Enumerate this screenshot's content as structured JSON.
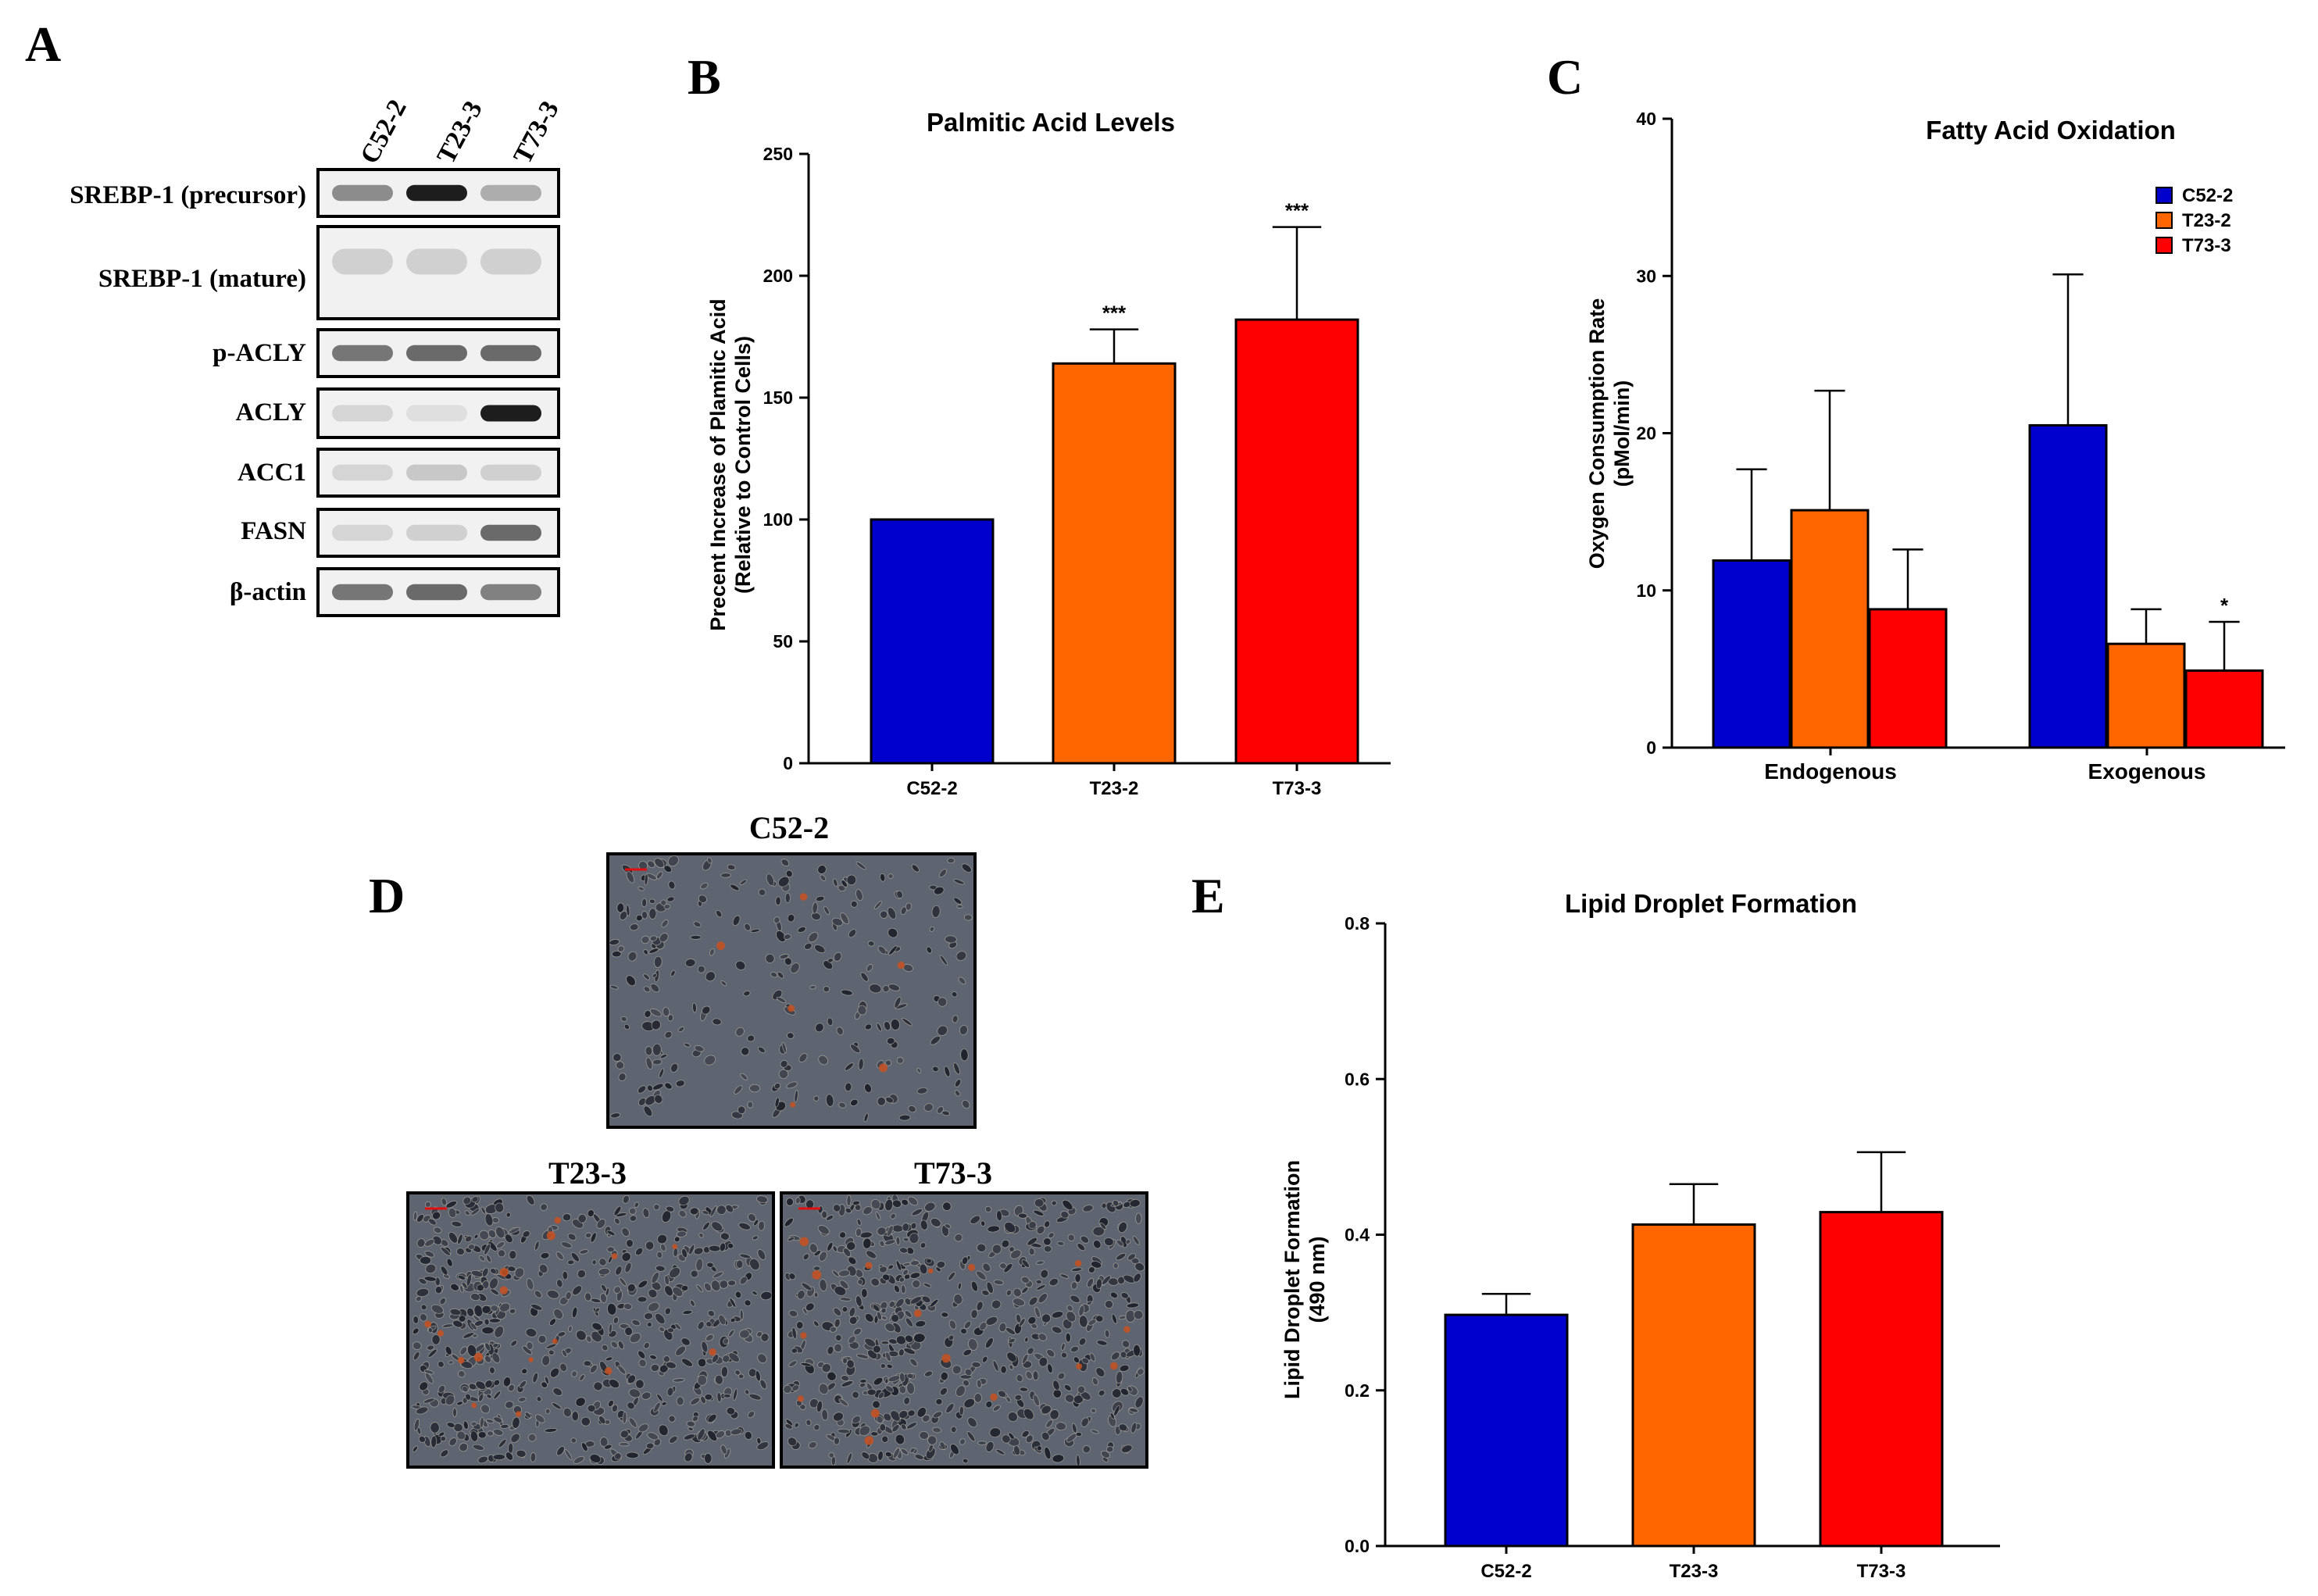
{
  "panel_letters": {
    "a": "A",
    "b": "B",
    "c": "C",
    "d": "D",
    "e": "E"
  },
  "colors": {
    "blue": "#0000CC",
    "orange": "#FF6600",
    "red": "#FF0000"
  },
  "western_blot": {
    "lanes": [
      "C52-2",
      "T23-3",
      "T73-3"
    ],
    "bands": [
      {
        "label": "SREBP-1 (precursor)",
        "intensity": [
          0.45,
          0.95,
          0.3
        ]
      },
      {
        "label": "SREBP-1 (mature)",
        "intensity": [
          0.15,
          0.15,
          0.15
        ]
      },
      {
        "label": "p-ACLY",
        "intensity": [
          0.55,
          0.6,
          0.6
        ]
      },
      {
        "label": "ACLY",
        "intensity": [
          0.12,
          0.08,
          0.95
        ]
      },
      {
        "label": "ACC1",
        "intensity": [
          0.12,
          0.18,
          0.15
        ]
      },
      {
        "label": "FASN",
        "intensity": [
          0.12,
          0.15,
          0.6
        ]
      },
      {
        "label": "β-actin",
        "intensity": [
          0.55,
          0.6,
          0.5
        ]
      }
    ]
  },
  "micrographs": {
    "items": [
      {
        "title": "C52-2",
        "density": "sparse"
      },
      {
        "title": "T23-3",
        "density": "dense"
      },
      {
        "title": "T73-3",
        "density": "dense"
      }
    ]
  },
  "chart_data": [
    {
      "id": "B",
      "type": "bar",
      "title": "Palmitic Acid Levels",
      "ylabel_lines": [
        "Precent Increase of Plamitic Acid",
        "(Relative to Control Cells)"
      ],
      "xlabel": "",
      "ylim": [
        0,
        250
      ],
      "yticks": [
        0,
        50,
        100,
        150,
        200,
        250
      ],
      "categories": [
        "C52-2",
        "T23-2",
        "T73-3"
      ],
      "values": [
        100,
        164,
        182
      ],
      "errors": [
        0,
        14,
        38
      ],
      "significance": [
        "",
        "***",
        "***"
      ]
    },
    {
      "id": "C",
      "type": "bar",
      "title": "Fatty  Acid Oxidation",
      "ylabel_lines": [
        "Oxygen Consumption Rate",
        "(pMol/min)"
      ],
      "xlabel": "",
      "ylim": [
        0,
        40
      ],
      "yticks": [
        0,
        10,
        20,
        30,
        40
      ],
      "categories": [
        "Endogenous",
        "Exogenous"
      ],
      "series": [
        {
          "name": "C52-2",
          "values": [
            11.9,
            20.5
          ],
          "errors": [
            5.8,
            9.6
          ],
          "significance": [
            "",
            ""
          ]
        },
        {
          "name": "T23-2",
          "values": [
            15.1,
            6.6
          ],
          "errors": [
            7.6,
            2.2
          ],
          "significance": [
            "",
            ""
          ]
        },
        {
          "name": "T73-3",
          "values": [
            8.8,
            4.9
          ],
          "errors": [
            3.8,
            3.1
          ],
          "significance": [
            "",
            "*"
          ]
        }
      ],
      "legend_position": "top-right"
    },
    {
      "id": "E",
      "type": "bar",
      "title": "Lipid Droplet Formation",
      "ylabel_lines": [
        "Lipid Droplet Formation",
        "(490 nm)"
      ],
      "xlabel": "",
      "ylim": [
        0,
        0.8
      ],
      "yticks": [
        "0.0",
        "0.2",
        "0.4",
        "0.6",
        "0.8"
      ],
      "categories": [
        "C52-2",
        "T23-3",
        "T73-3"
      ],
      "values": [
        0.297,
        0.413,
        0.429
      ],
      "errors": [
        0.027,
        0.052,
        0.077
      ],
      "significance": [
        "",
        "",
        ""
      ]
    }
  ]
}
